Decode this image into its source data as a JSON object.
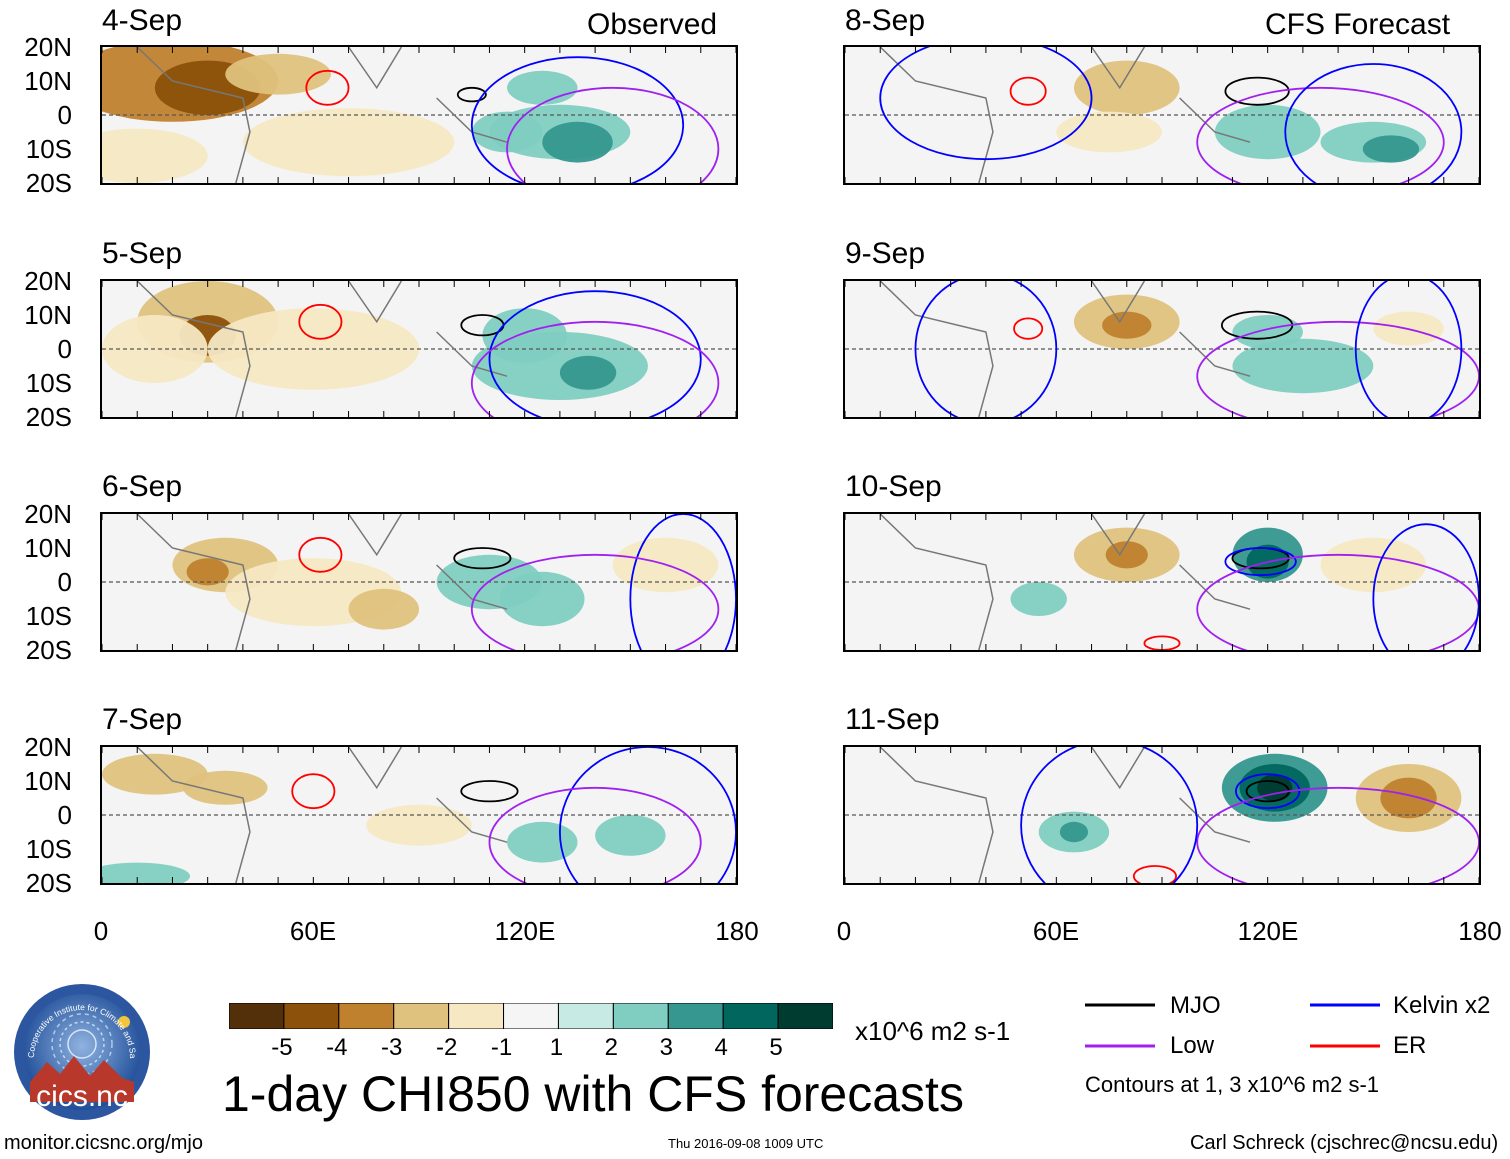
{
  "chart_data": {
    "type": "heatmap",
    "title": "1-day CHI850 with CFS forecasts",
    "variable": "CHI850",
    "units": "x10^6 m2 s-1",
    "columns": [
      {
        "header": "Observed",
        "panels": [
          "4-Sep",
          "5-Sep",
          "6-Sep",
          "7-Sep"
        ]
      },
      {
        "header": "CFS Forecast",
        "panels": [
          "8-Sep",
          "9-Sep",
          "10-Sep",
          "11-Sep"
        ]
      }
    ],
    "lat_ticks": [
      "20N",
      "10N",
      "0",
      "10S",
      "20S"
    ],
    "lon_ticks": [
      "0",
      "60E",
      "120E",
      "180"
    ],
    "lon_range": [
      0,
      180
    ],
    "lat_range": [
      -20,
      20
    ],
    "colorbar": {
      "ticks": [
        "-5",
        "-4",
        "-3",
        "-2",
        "-1",
        "1",
        "2",
        "3",
        "4",
        "5"
      ],
      "colors": [
        "#54300a",
        "#8c510a",
        "#bf812d",
        "#dfc27d",
        "#f6e8c3",
        "#f5f5f5",
        "#c7eae5",
        "#80cdc1",
        "#35978f",
        "#01665e",
        "#003c30"
      ]
    },
    "contour_legend": [
      {
        "label": "MJO",
        "color": "#000000"
      },
      {
        "label": "Kelvin x2",
        "color": "#0000ff"
      },
      {
        "label": "Low",
        "color": "#a020f0"
      },
      {
        "label": "ER",
        "color": "#ff0000"
      }
    ],
    "contour_note": "Contours at 1, 3 x10^6 m2 s-1"
  },
  "footer": {
    "left": "monitor.cicsnc.org/mjo",
    "center": "Thu 2016-09-08 1009 UTC",
    "right": "Carl Schreck (cjschrec@ncsu.edu)"
  },
  "logo": {
    "text": "cics.nc",
    "arc_text": "Cooperative Institute for Climate and Satellites"
  }
}
